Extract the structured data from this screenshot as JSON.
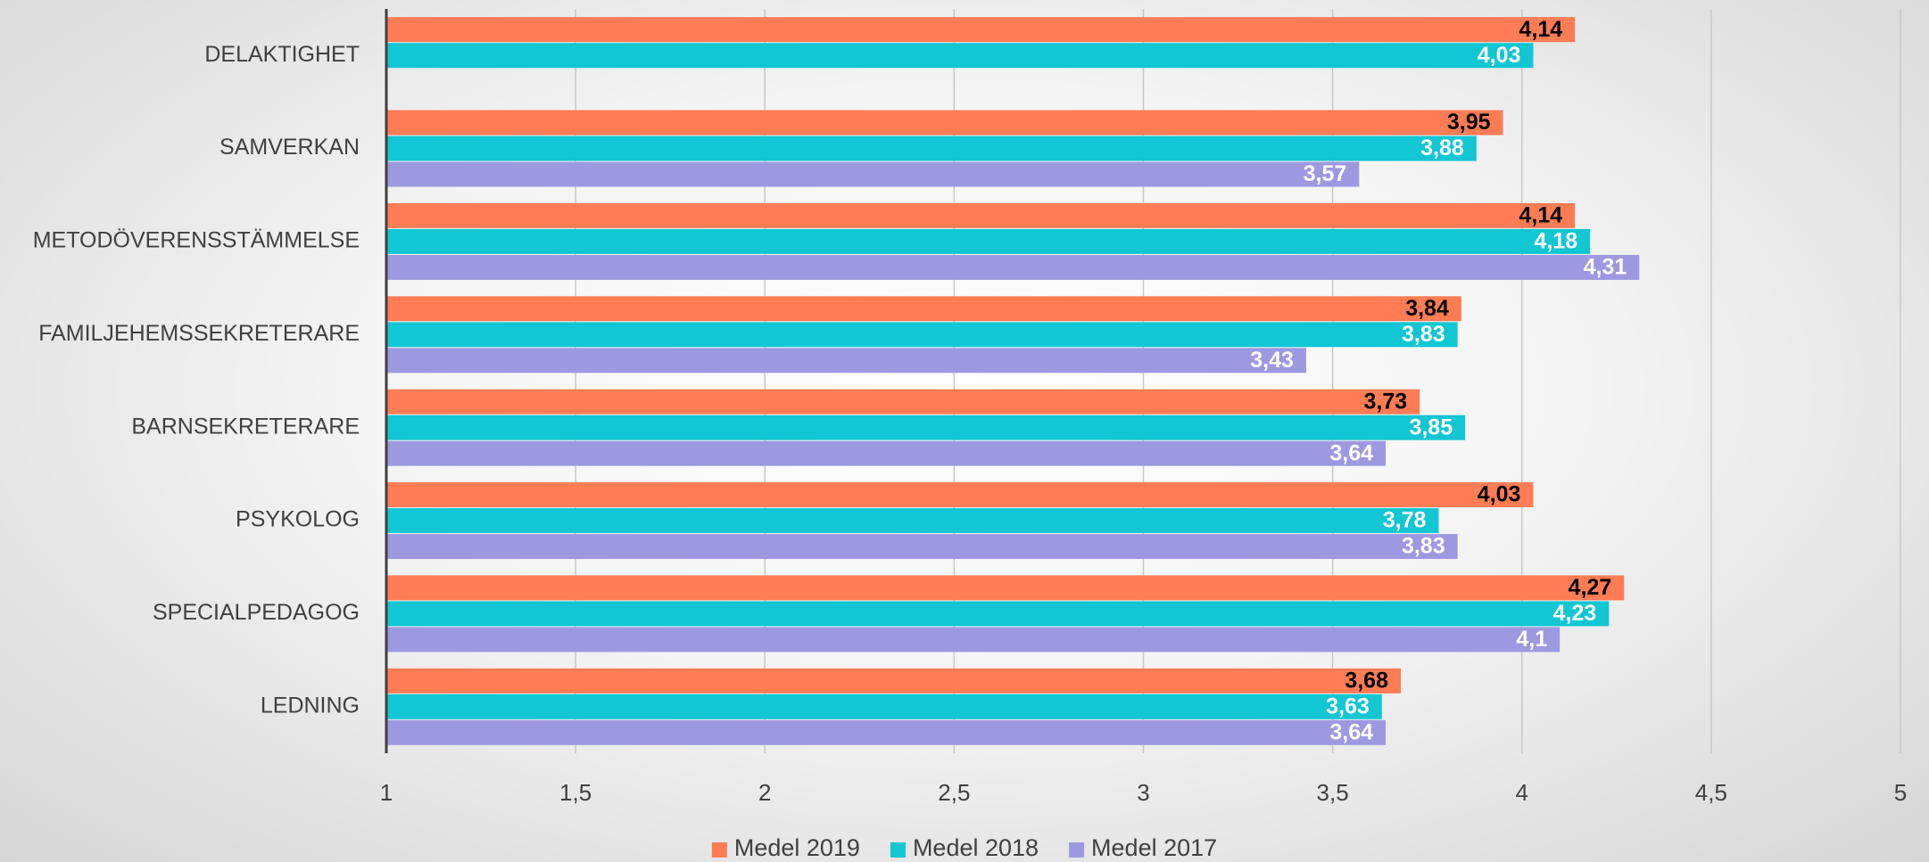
{
  "chart_data": {
    "type": "bar",
    "orientation": "horizontal",
    "categories": [
      "DELAKTIGHET",
      "SAMVERKAN",
      "METODÖVERENSSTÄMMELSE",
      "FAMILJEHEMSSEKRETERARE",
      "BARNSEKRETERARE",
      "PSYKOLOG",
      "SPECIALPEDAGOG",
      "LEDNING"
    ],
    "series": [
      {
        "name": "Medel 2019",
        "color": "#ff7c55",
        "label_color": "#000000",
        "values": [
          4.14,
          3.95,
          4.14,
          3.84,
          3.73,
          4.03,
          4.27,
          3.68
        ],
        "value_labels": [
          "4,14",
          "3,95",
          "4,14",
          "3,84",
          "3,73",
          "4,03",
          "4,27",
          "3,68"
        ]
      },
      {
        "name": "Medel 2018",
        "color": "#12c6d3",
        "label_color": "#ffffff",
        "values": [
          4.03,
          3.88,
          4.18,
          3.83,
          3.85,
          3.78,
          4.23,
          3.63
        ],
        "value_labels": [
          "4,03",
          "3,88",
          "4,18",
          "3,83",
          "3,85",
          "3,78",
          "4,23",
          "3,63"
        ]
      },
      {
        "name": "Medel 2017",
        "color": "#9d99e0",
        "label_color": "#ffffff",
        "values": [
          null,
          3.57,
          4.31,
          3.43,
          3.64,
          3.83,
          4.1,
          3.64
        ],
        "value_labels": [
          null,
          "3,57",
          "4,31",
          "3,43",
          "3,64",
          "3,83",
          "4,1",
          "3,64"
        ]
      }
    ],
    "xlim": [
      1,
      5
    ],
    "xticks": [
      1,
      {
        "value": 1.5,
        "label": "1,5"
      },
      2,
      {
        "value": 2.5,
        "label": "2,5"
      },
      3,
      {
        "value": 3.5,
        "label": "3,5"
      },
      4,
      {
        "value": 4.5,
        "label": "4,5"
      },
      5
    ],
    "grid": true,
    "legend": "bottom"
  }
}
